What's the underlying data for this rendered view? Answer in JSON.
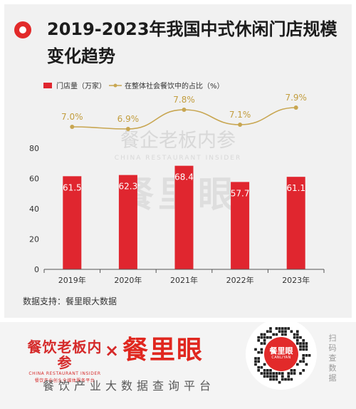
{
  "header": {
    "title": "2019-2023年我国中式休闲门店规模变化趋势"
  },
  "chart_data": {
    "type": "bar",
    "categories": [
      "2019年",
      "2020年",
      "2021年",
      "2022年",
      "2023年"
    ],
    "series": [
      {
        "name": "门店量（万家）",
        "values": [
          61.5,
          62.3,
          68.4,
          57.7,
          61.1
        ],
        "labels": [
          "61.5",
          "62.3",
          "68.4",
          "57.7",
          "61.1"
        ]
      },
      {
        "name": "在整体社会餐饮中的占比（%）",
        "values": [
          7.0,
          6.9,
          7.8,
          7.1,
          7.9
        ],
        "labels": [
          "7.0%",
          "6.9%",
          "7.8%",
          "7.1%",
          "7.9%"
        ]
      }
    ],
    "y_ticks": [
      "0",
      "20",
      "40",
      "60",
      "80"
    ],
    "ylim": [
      0,
      80
    ],
    "bar_color": "#e0262f",
    "line_color": "#c8a651",
    "legend_position": "top-left"
  },
  "source": "数据支持：餐里眼大数据",
  "watermark": {
    "line1": "餐企老板内参",
    "line2": "CHINA RESTAURANT INSIDER",
    "line3": "餐里眼"
  },
  "footer": {
    "brand_left": "餐饮老板内参",
    "brand_left_en": "CHINA RESTAURANT INSIDER",
    "brand_left_sub": "餐饮产业创头全媒体服务平台",
    "times": "×",
    "brand_right": "餐里眼",
    "tagline": "餐饮产业大数据查询平台",
    "qr_brand": "餐里眼",
    "qr_brand_en": "CANLIYAN",
    "scan": "扫码查数据"
  },
  "colors": {
    "accent": "#e22a2a",
    "panel": "#f1f1f1",
    "text": "#1c1c1c"
  }
}
